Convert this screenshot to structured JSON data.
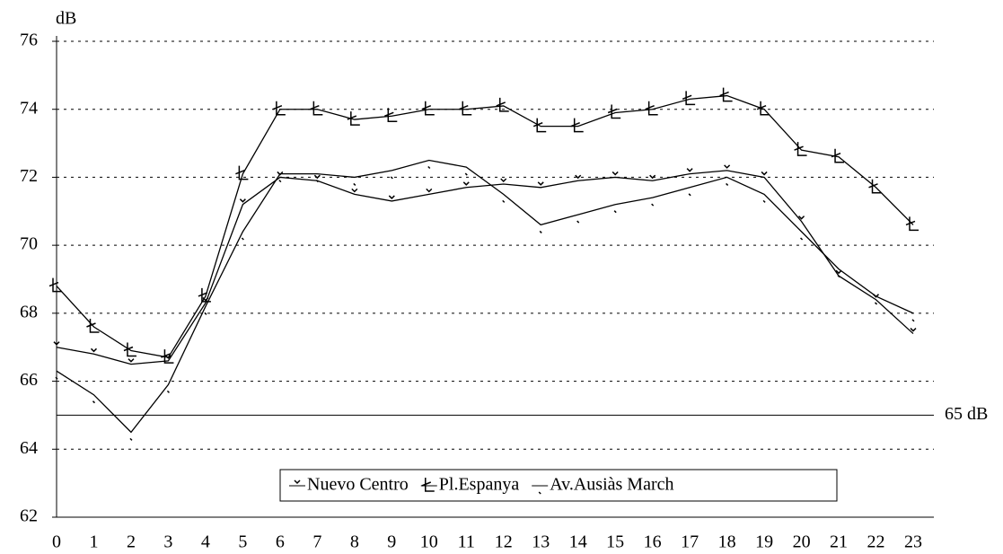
{
  "chart_data": {
    "type": "line",
    "y_label": "dB",
    "categories": [
      "0",
      "1",
      "2",
      "3",
      "4",
      "5",
      "6",
      "7",
      "8",
      "9",
      "10",
      "11",
      "12",
      "13",
      "14",
      "15",
      "16",
      "17",
      "18",
      "19",
      "20",
      "21",
      "22",
      "23"
    ],
    "series": [
      {
        "name": "Nuevo Centro",
        "color": "#000000",
        "values": [
          67.0,
          66.8,
          66.5,
          66.6,
          68.3,
          71.2,
          72.0,
          71.9,
          71.5,
          71.3,
          71.5,
          71.7,
          71.8,
          71.7,
          71.9,
          72.0,
          71.9,
          72.1,
          72.2,
          72.0,
          70.7,
          69.1,
          68.4,
          67.4
        ]
      },
      {
        "name": "Pl.Espanya",
        "color": "#000000",
        "values": [
          68.8,
          67.6,
          66.9,
          66.7,
          68.5,
          72.1,
          74.0,
          74.0,
          73.7,
          73.8,
          74.0,
          74.0,
          74.1,
          73.5,
          73.5,
          73.9,
          74.0,
          74.3,
          74.4,
          74.0,
          72.8,
          72.6,
          71.7,
          70.6
        ]
      },
      {
        "name": "Av.Ausiàs March",
        "color": "#000000",
        "values": [
          66.3,
          65.6,
          64.5,
          65.9,
          68.2,
          70.4,
          72.1,
          72.1,
          72.0,
          72.2,
          72.5,
          72.3,
          71.5,
          70.6,
          70.9,
          71.2,
          71.4,
          71.7,
          72.0,
          71.5,
          70.4,
          69.3,
          68.5,
          68.0
        ]
      }
    ],
    "ylim": [
      62,
      76
    ],
    "yticks": [
      62,
      64,
      66,
      68,
      70,
      72,
      74,
      76
    ],
    "grid": true,
    "reference_line": {
      "value": 65,
      "label": "65 dB"
    },
    "legend": "bottom"
  }
}
